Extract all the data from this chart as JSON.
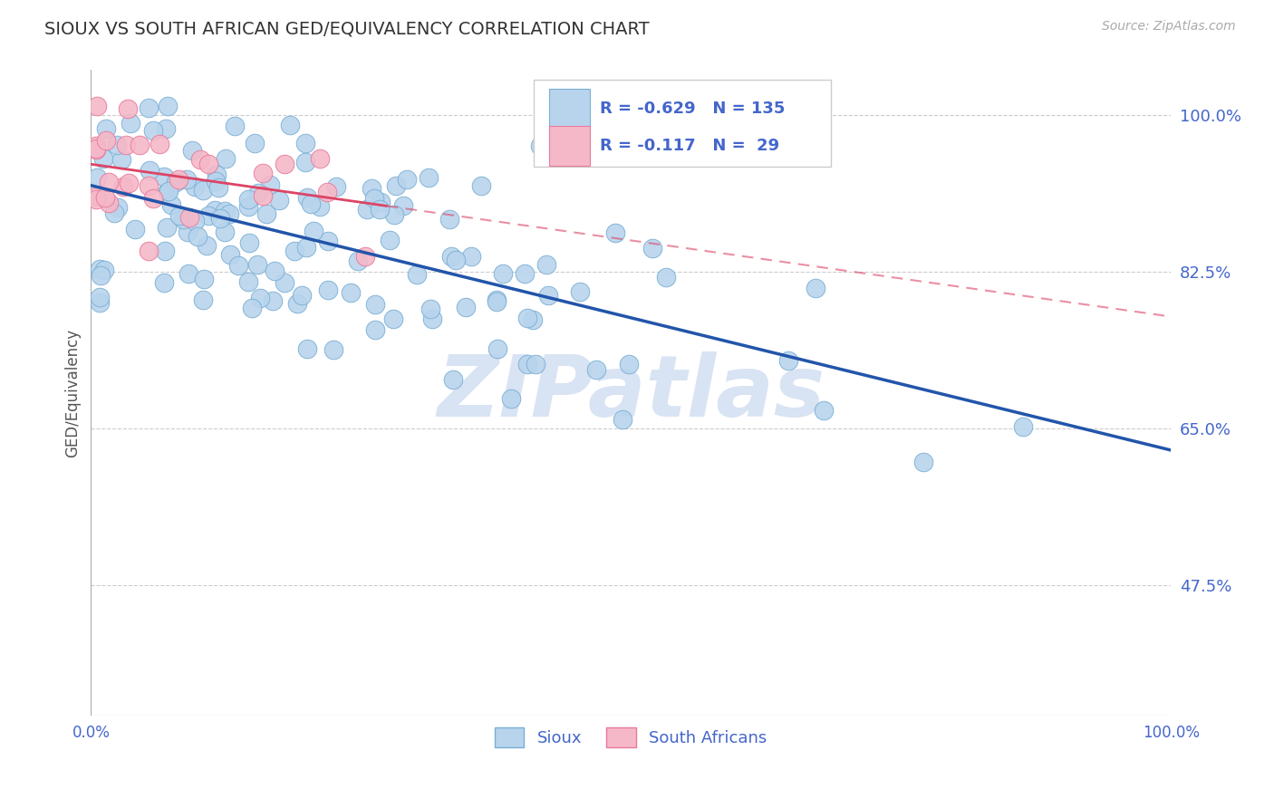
{
  "title": "SIOUX VS SOUTH AFRICAN GED/EQUIVALENCY CORRELATION CHART",
  "source": "Source: ZipAtlas.com",
  "ylabel": "GED/Equivalency",
  "xlim": [
    0.0,
    1.0
  ],
  "ylim": [
    0.33,
    1.05
  ],
  "yticks": [
    0.475,
    0.65,
    0.825,
    1.0
  ],
  "ytick_labels": [
    "47.5%",
    "65.0%",
    "82.5%",
    "100.0%"
  ],
  "sioux_R": -0.629,
  "sioux_N": 135,
  "sa_R": -0.117,
  "sa_N": 29,
  "sioux_color": "#b8d4ed",
  "sioux_edge": "#7aafd4",
  "sa_color": "#f5b8c8",
  "sa_edge": "#e87a9a",
  "trend_sioux_color": "#2255aa",
  "trend_sa_color": "#dd4466",
  "background_color": "#ffffff",
  "watermark_color": "#c8d8ee",
  "tick_color": "#4466cc",
  "grid_color": "#cccccc"
}
